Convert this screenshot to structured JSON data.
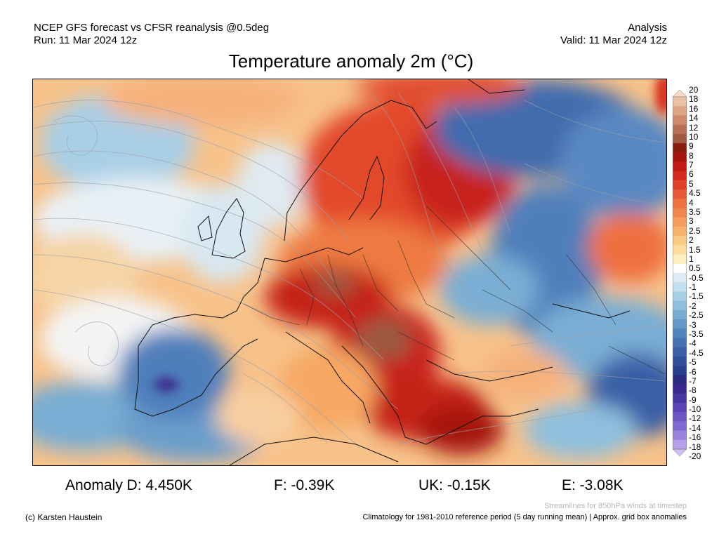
{
  "header": {
    "line1_left": "NCEP GFS forecast vs CFSR reanalysis @0.5deg",
    "line2_left": "Run: 11 Mar 2024 12z",
    "line1_right": "Analysis",
    "line2_right": "Valid: 11 Mar 2024 12z"
  },
  "title": "Temperature anomaly 2m (°C)",
  "colorbar": {
    "labels": [
      "20",
      "18",
      "16",
      "14",
      "12",
      "10",
      "9",
      "8",
      "7",
      "6",
      "5",
      "4.5",
      "4",
      "3.5",
      "3",
      "2.5",
      "2",
      "1.5",
      "1",
      "0.5",
      "-0.5",
      "-1",
      "-1.5",
      "-2",
      "-2.5",
      "-3",
      "-3.5",
      "-4",
      "-4.5",
      "-5",
      "-6",
      "-7",
      "-8",
      "-9",
      "-10",
      "-12",
      "-14",
      "-16",
      "-18",
      "-20"
    ],
    "colors": [
      "#f6d9c6",
      "#ecc0a4",
      "#e0a486",
      "#cf8a6c",
      "#b97056",
      "#a25a44",
      "#8a1c0f",
      "#a5140e",
      "#c01a14",
      "#d42a1e",
      "#e0402a",
      "#e85a36",
      "#ee7140",
      "#f2874c",
      "#f59e5c",
      "#f7b36e",
      "#f9c882",
      "#fbdc9c",
      "#fdf0c0",
      "#ffffff",
      "#dbecf6",
      "#c2e0f0",
      "#a6d0e8",
      "#8ebfde",
      "#78acd3",
      "#6398c8",
      "#5185bd",
      "#4472b2",
      "#3a5fa6",
      "#30509a",
      "#2a3f8c",
      "#2a2c80",
      "#3a2a8e",
      "#4a36a2",
      "#5a44b4",
      "#6c56c4",
      "#8068d2",
      "#9a82de",
      "#b6a0ea",
      "#d2c0f4"
    ]
  },
  "stats": {
    "d": "Anomaly D: 4.450K",
    "f": "F: -0.39K",
    "uk": "UK: -0.15K",
    "e": "E: -3.08K"
  },
  "footer": {
    "streamlines": "Streamlines for 850hPa winds at timestep",
    "credit": "(c) Karsten Haustein",
    "climatology": "Climatology for 1981-2010 reference period (5 day running mean) | Approx. grid box anomalies"
  }
}
